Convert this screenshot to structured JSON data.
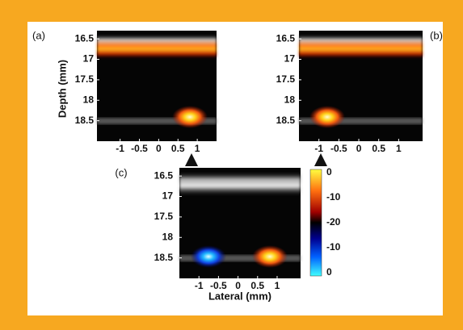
{
  "y_label": "Depth (mm)",
  "x_label": "Lateral (mm)",
  "panels": [
    {
      "label": "(a)",
      "xlim": [
        -1.6,
        1.5
      ],
      "ylim": [
        16.3,
        19
      ],
      "xticks": [
        -1,
        -0.5,
        0,
        0.5,
        1
      ],
      "yticks": [
        16.5,
        17,
        17.5,
        18,
        18.5
      ]
    },
    {
      "label": "(b)",
      "xlim": [
        -1.5,
        1.6
      ],
      "ylim": [
        16.3,
        19
      ],
      "xticks": [
        -1,
        -0.5,
        0,
        0.5,
        1
      ],
      "yticks": [
        16.5,
        17,
        17.5,
        18,
        18.5
      ]
    },
    {
      "label": "(c)",
      "xlim": [
        -1.5,
        1.6
      ],
      "ylim": [
        16.3,
        19
      ],
      "xticks": [
        -1,
        -0.5,
        0,
        0.5,
        1
      ],
      "yticks": [
        16.5,
        17,
        17.5,
        18,
        18.5
      ]
    }
  ],
  "colorbar": {
    "labels": [
      0,
      -10,
      -20,
      -10,
      0
    ]
  }
}
